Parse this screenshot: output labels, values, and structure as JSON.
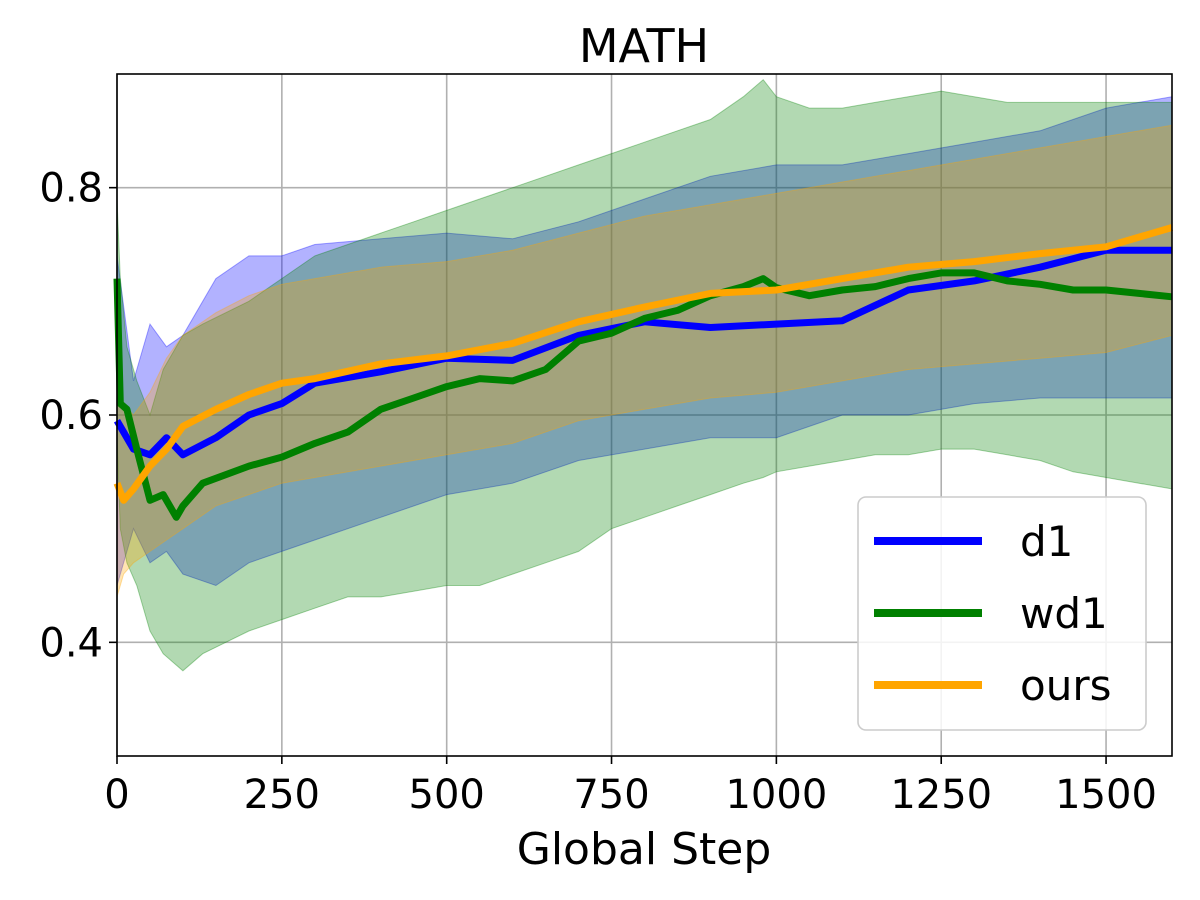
{
  "chart_data": {
    "type": "line",
    "title": "MATH",
    "xlabel": "Global Step",
    "ylabel": "",
    "xlim": [
      0,
      1600
    ],
    "ylim": [
      0.3,
      0.9
    ],
    "grid": true,
    "legend_position": "lower-right",
    "x_ticks": [
      0,
      250,
      500,
      750,
      1000,
      1250,
      1500
    ],
    "x_tick_labels": [
      "0",
      "250",
      "500",
      "750",
      "1000",
      "1250",
      "1500"
    ],
    "y_ticks": [
      0.4,
      0.6,
      0.8
    ],
    "y_tick_labels": [
      "0.4",
      "0.6",
      "0.8"
    ],
    "series": [
      {
        "name": "d1",
        "color": "#0000ff",
        "x": [
          0,
          25,
          50,
          75,
          100,
          150,
          200,
          250,
          300,
          400,
          500,
          600,
          700,
          800,
          900,
          1000,
          1100,
          1200,
          1300,
          1400,
          1500,
          1600
        ],
        "mean": [
          0.595,
          0.57,
          0.565,
          0.58,
          0.565,
          0.58,
          0.6,
          0.61,
          0.628,
          0.638,
          0.65,
          0.648,
          0.67,
          0.682,
          0.677,
          0.68,
          0.683,
          0.71,
          0.718,
          0.73,
          0.745,
          0.745
        ],
        "upper": [
          0.74,
          0.63,
          0.68,
          0.66,
          0.67,
          0.72,
          0.74,
          0.74,
          0.75,
          0.755,
          0.76,
          0.755,
          0.77,
          0.79,
          0.81,
          0.82,
          0.82,
          0.83,
          0.84,
          0.85,
          0.87,
          0.88
        ],
        "lower": [
          0.45,
          0.5,
          0.47,
          0.48,
          0.46,
          0.45,
          0.47,
          0.48,
          0.49,
          0.51,
          0.53,
          0.54,
          0.56,
          0.57,
          0.58,
          0.58,
          0.6,
          0.6,
          0.61,
          0.615,
          0.615,
          0.615
        ]
      },
      {
        "name": "wd1",
        "color": "#008000",
        "x": [
          0,
          5,
          15,
          30,
          50,
          70,
          90,
          100,
          130,
          200,
          250,
          300,
          350,
          400,
          450,
          500,
          550,
          600,
          650,
          700,
          750,
          800,
          850,
          900,
          950,
          980,
          1000,
          1050,
          1100,
          1150,
          1200,
          1250,
          1300,
          1350,
          1400,
          1450,
          1500,
          1550,
          1600
        ],
        "mean": [
          0.72,
          0.61,
          0.605,
          0.57,
          0.525,
          0.53,
          0.51,
          0.52,
          0.54,
          0.555,
          0.563,
          0.575,
          0.585,
          0.605,
          0.615,
          0.625,
          0.632,
          0.63,
          0.64,
          0.665,
          0.672,
          0.685,
          0.692,
          0.705,
          0.713,
          0.72,
          0.712,
          0.705,
          0.71,
          0.713,
          0.72,
          0.725,
          0.725,
          0.718,
          0.715,
          0.71,
          0.71,
          0.707,
          0.704
        ],
        "upper": [
          0.79,
          0.72,
          0.66,
          0.63,
          0.6,
          0.64,
          0.66,
          0.67,
          0.68,
          0.7,
          0.72,
          0.74,
          0.75,
          0.76,
          0.77,
          0.78,
          0.79,
          0.8,
          0.81,
          0.82,
          0.83,
          0.84,
          0.85,
          0.86,
          0.88,
          0.895,
          0.88,
          0.87,
          0.87,
          0.875,
          0.88,
          0.885,
          0.88,
          0.875,
          0.875,
          0.875,
          0.875,
          0.875,
          0.875
        ],
        "lower": [
          0.58,
          0.5,
          0.47,
          0.45,
          0.41,
          0.39,
          0.38,
          0.375,
          0.39,
          0.41,
          0.42,
          0.43,
          0.44,
          0.44,
          0.445,
          0.45,
          0.45,
          0.46,
          0.47,
          0.48,
          0.5,
          0.51,
          0.52,
          0.53,
          0.54,
          0.545,
          0.55,
          0.555,
          0.56,
          0.565,
          0.565,
          0.57,
          0.57,
          0.565,
          0.56,
          0.55,
          0.545,
          0.54,
          0.535
        ]
      },
      {
        "name": "ours",
        "color": "#ffa500",
        "x": [
          0,
          10,
          25,
          50,
          75,
          100,
          150,
          200,
          250,
          300,
          400,
          500,
          600,
          700,
          800,
          900,
          1000,
          1100,
          1200,
          1300,
          1400,
          1500,
          1600
        ],
        "mean": [
          0.54,
          0.525,
          0.535,
          0.555,
          0.57,
          0.59,
          0.605,
          0.618,
          0.628,
          0.632,
          0.645,
          0.652,
          0.663,
          0.682,
          0.695,
          0.707,
          0.71,
          0.72,
          0.73,
          0.735,
          0.742,
          0.748,
          0.765
        ],
        "upper": [
          0.64,
          0.61,
          0.6,
          0.62,
          0.65,
          0.67,
          0.69,
          0.705,
          0.715,
          0.72,
          0.73,
          0.735,
          0.745,
          0.76,
          0.775,
          0.785,
          0.795,
          0.805,
          0.815,
          0.825,
          0.835,
          0.845,
          0.855
        ],
        "lower": [
          0.44,
          0.46,
          0.47,
          0.48,
          0.49,
          0.5,
          0.52,
          0.53,
          0.54,
          0.545,
          0.555,
          0.565,
          0.575,
          0.595,
          0.605,
          0.615,
          0.62,
          0.63,
          0.64,
          0.645,
          0.65,
          0.655,
          0.67
        ]
      }
    ]
  }
}
